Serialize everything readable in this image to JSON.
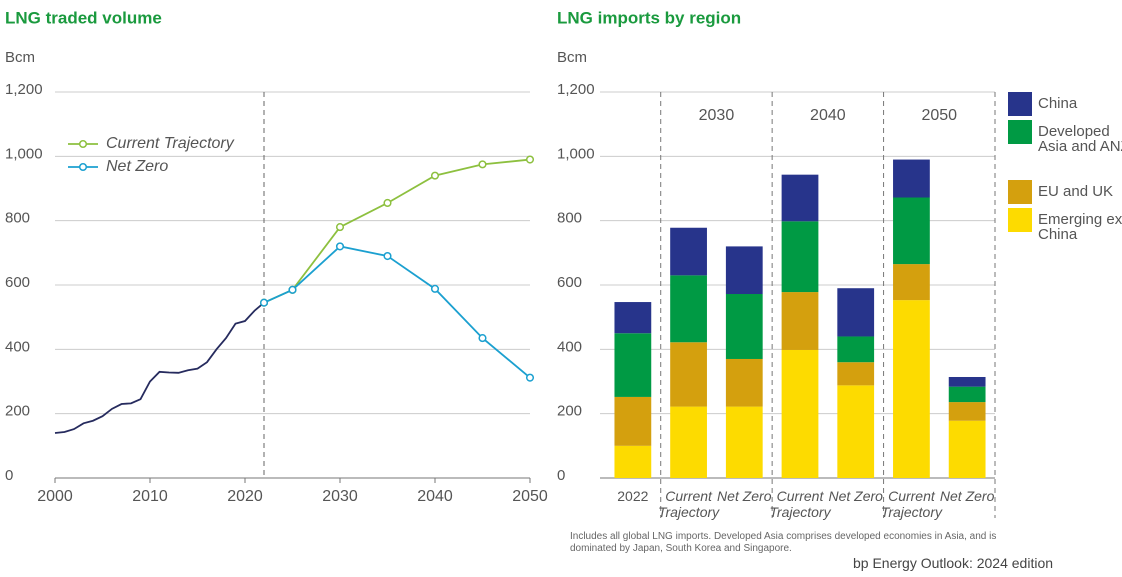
{
  "chart_data": [
    {
      "type": "line",
      "title": "LNG traded volume",
      "y_label": "Bcm",
      "xlim": [
        2000,
        2050
      ],
      "xticks": [
        2000,
        2010,
        2020,
        2030,
        2040,
        2050
      ],
      "ylim": [
        0,
        1200
      ],
      "yticks": [
        0,
        200,
        400,
        600,
        800,
        {
          "value": 1000,
          "label": "1,000"
        },
        {
          "value": 1200,
          "label": "1,200"
        }
      ],
      "grid": true,
      "vline": 2022,
      "series": [
        {
          "color": "#262b5e",
          "x": [
            2000,
            2001,
            2002,
            2003,
            2004,
            2005,
            2006,
            2007,
            2008,
            2009,
            2010,
            2011,
            2012,
            2013,
            2014,
            2015,
            2016,
            2017,
            2018,
            2019,
            2020,
            2021,
            2022
          ],
          "values": [
            140,
            143,
            152,
            170,
            178,
            192,
            215,
            230,
            232,
            245,
            300,
            330,
            328,
            327,
            335,
            340,
            360,
            400,
            435,
            480,
            488,
            520,
            545
          ]
        },
        {
          "name": "Current Trajectory",
          "color": "#8dc03f",
          "marker": "circle",
          "x": [
            2022,
            2025,
            2030,
            2035,
            2040,
            2045,
            2050
          ],
          "values": [
            545,
            585,
            780,
            855,
            940,
            975,
            990
          ]
        },
        {
          "name": "Net Zero",
          "color": "#1ba0d0",
          "marker": "circle",
          "x": [
            2022,
            2025,
            2030,
            2035,
            2040,
            2045,
            2050
          ],
          "values": [
            545,
            585,
            720,
            690,
            588,
            435,
            312
          ]
        }
      ]
    },
    {
      "type": "bar",
      "stacked": true,
      "title": "LNG imports by region",
      "y_label": "Bcm",
      "categories": [
        "2022",
        "Current Trajectory",
        "Net Zero",
        "Current Trajectory",
        "Net Zero",
        "Current Trajectory",
        "Net Zero"
      ],
      "groups": [
        "2030",
        "2040",
        "2050"
      ],
      "ylim": [
        0,
        1200
      ],
      "yticks": [
        0,
        200,
        400,
        600,
        800,
        {
          "value": 1000,
          "label": "1,000"
        },
        {
          "value": 1200,
          "label": "1,200"
        }
      ],
      "grid": true,
      "series": [
        {
          "name": "Emerging ex. China",
          "color": "#fddb00",
          "values": [
            100,
            222,
            222,
            398,
            288,
            553,
            178
          ]
        },
        {
          "name": "EU and UK",
          "color": "#d4a00e",
          "values": [
            152,
            200,
            148,
            180,
            72,
            112,
            58
          ]
        },
        {
          "name": "Developed Asia and ANZ",
          "color": "#009a44",
          "values": [
            198,
            208,
            202,
            220,
            80,
            207,
            48
          ]
        },
        {
          "name": "China",
          "color": "#27348b",
          "values": [
            97,
            148,
            148,
            145,
            150,
            118,
            30
          ]
        }
      ],
      "footnote": "Includes all global LNG imports. Developed Asia comprises developed economies in Asia, and is dominated by Japan, South Korea and Singapore."
    }
  ],
  "source": "bp Energy Outlook: 2024 edition"
}
